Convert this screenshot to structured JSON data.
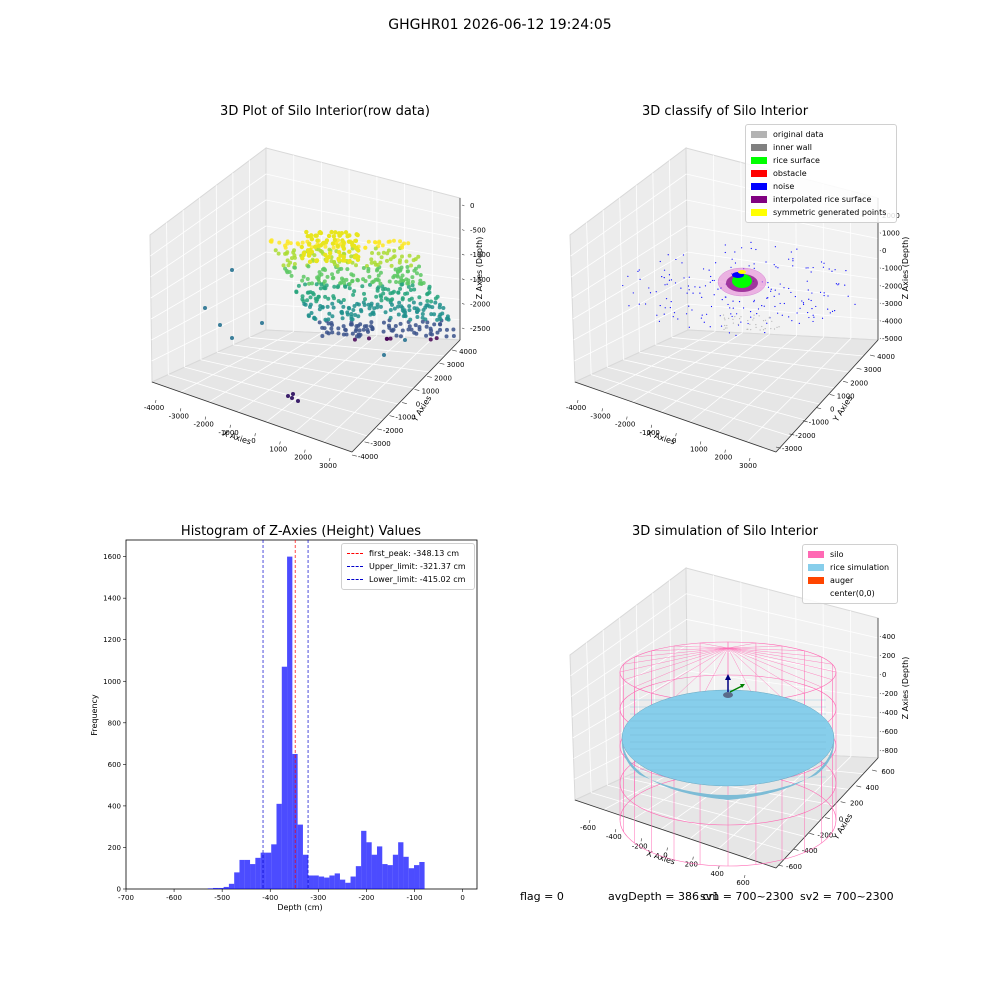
{
  "suptitle": "GHGHR01 2026-06-12 19:24:05",
  "status": {
    "flag": "flag = 0",
    "avg_depth": "avgDepth = 386 cm",
    "sv1": "sv1 = 700~2300",
    "sv2": "sv2 = 700~2300"
  },
  "chart_data": [
    {
      "type": "scatter",
      "title": "3D Plot of Silo Interior(row data)",
      "xlabel": "X Axies",
      "ylabel": "Y Axies",
      "zlabel": "Z Axies (Depth)",
      "xticks": [
        "-4000",
        "-3000",
        "-2000",
        "-1000",
        "0",
        "1000",
        "2000",
        "3000"
      ],
      "yticks": [
        "-4000",
        "-3000",
        "-2000",
        "-1000",
        "0",
        "1000",
        "2000",
        "3000",
        "4000"
      ],
      "zticks": [
        "0",
        "-500",
        "-1000",
        "-1500",
        "-2000",
        "-2500"
      ],
      "colormap": "viridis",
      "grid": true
    },
    {
      "type": "scatter",
      "title": "3D classify of Silo Interior",
      "xlabel": "X Axies",
      "ylabel": "Y Axies",
      "zlabel": "Z Axies (Depth)",
      "xticks": [
        "-4000",
        "-3000",
        "-2000",
        "-1000",
        "0",
        "1000",
        "2000",
        "3000"
      ],
      "yticks": [
        "-3000",
        "-2000",
        "-1000",
        "0",
        "1000",
        "2000",
        "3000",
        "4000"
      ],
      "zticks": [
        "2000",
        "1000",
        "0",
        "-1000",
        "-2000",
        "-3000",
        "-4000",
        "-5000"
      ],
      "legend_position": "top-right",
      "legend": [
        {
          "name": "original data",
          "color": "#b3b3b3"
        },
        {
          "name": "inner wall",
          "color": "#808080"
        },
        {
          "name": "rice surface",
          "color": "#00ff00"
        },
        {
          "name": "obstacle",
          "color": "#ff0000"
        },
        {
          "name": "noise",
          "color": "#0000ff"
        },
        {
          "name": "interpolated rice surface",
          "color": "#800080"
        },
        {
          "name": "symmetric generated points",
          "color": "#ffff00"
        }
      ],
      "grid": true
    },
    {
      "type": "bar",
      "title": "Histogram of Z-Axies (Height) Values",
      "xlabel": "Depth (cm)",
      "ylabel": "Frequency",
      "xlim": [
        -700,
        30
      ],
      "ylim": [
        0,
        1680
      ],
      "xticks": [
        -700,
        -600,
        -500,
        -400,
        -300,
        -200,
        -100,
        0
      ],
      "yticks": [
        0,
        200,
        400,
        600,
        800,
        1000,
        1200,
        1400,
        1600
      ],
      "bar_color": "#0000ff",
      "bin_edges_start": -530,
      "bin_width": 11,
      "values": [
        3,
        5,
        5,
        10,
        25,
        80,
        140,
        140,
        120,
        150,
        175,
        175,
        215,
        410,
        1070,
        1600,
        650,
        310,
        165,
        65,
        65,
        60,
        55,
        65,
        75,
        45,
        30,
        60,
        110,
        280,
        225,
        165,
        205,
        120,
        115,
        165,
        225,
        155,
        100,
        115,
        130
      ],
      "vlines": [
        {
          "name": "first_peak: -348.13 cm",
          "x": -348.13,
          "color": "#ff0000"
        },
        {
          "name": "Upper_limit: -321.37 cm",
          "x": -321.37,
          "color": "#0000cc"
        },
        {
          "name": "Lower_limit: -415.02 cm",
          "x": -415.02,
          "color": "#0000cc"
        }
      ],
      "legend_position": "top-right",
      "grid": false
    },
    {
      "type": "scatter",
      "title": "3D simulation of Silo Interior",
      "xlabel": "X Axies",
      "ylabel": "Y Axies",
      "zlabel": "Z Axies (Depth)",
      "xticks": [
        "-600",
        "-400",
        "-200",
        "0",
        "200",
        "400",
        "600"
      ],
      "yticks": [
        "-600",
        "-400",
        "-200",
        "0",
        "200",
        "400",
        "600"
      ],
      "zticks": [
        "400",
        "200",
        "0",
        "-200",
        "-400",
        "-600",
        "-800"
      ],
      "legend_position": "top-right",
      "legend": [
        {
          "name": "silo",
          "color": "#ff69b4"
        },
        {
          "name": "rice simulation",
          "color": "#87ceeb"
        },
        {
          "name": "auger",
          "color": "#ff4500"
        },
        {
          "name": "center(0,0)",
          "color": "#ffffff"
        }
      ],
      "grid": true
    }
  ]
}
